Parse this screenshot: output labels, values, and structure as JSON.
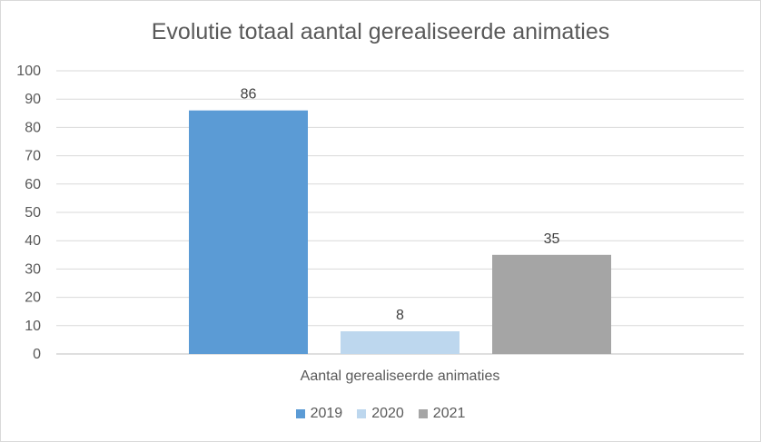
{
  "chart_data": {
    "type": "bar",
    "title": "Evolutie totaal aantal gerealiseerde animaties",
    "categories": [
      "Aantal gerealiseerde animaties"
    ],
    "series": [
      {
        "name": "2019",
        "values": [
          86
        ],
        "color": "#5b9bd5"
      },
      {
        "name": "2020",
        "values": [
          8
        ],
        "color": "#bdd7ee"
      },
      {
        "name": "2021",
        "values": [
          35
        ],
        "color": "#a5a5a5"
      }
    ],
    "ylim": [
      0,
      100
    ],
    "yticks": [
      0,
      10,
      20,
      30,
      40,
      50,
      60,
      70,
      80,
      90,
      100
    ],
    "grid": true,
    "data_labels": true,
    "legend_position": "bottom"
  }
}
